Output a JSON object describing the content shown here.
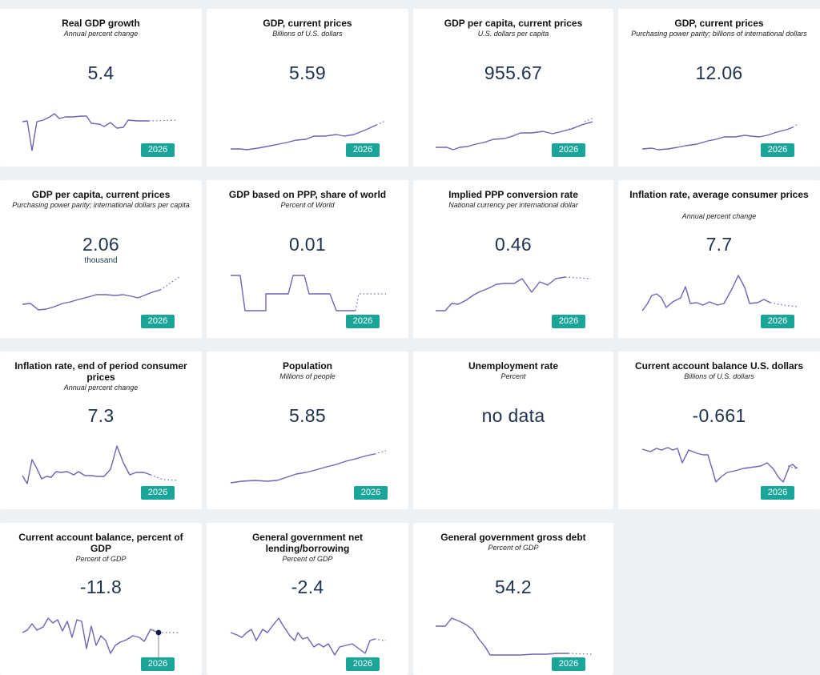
{
  "colors": {
    "accent": "#1aa59a",
    "line": "#6f63b5",
    "value": "#1f3350"
  },
  "projection_year": "2026",
  "cards": [
    {
      "title": "Real GDP growth",
      "subtitle": "Annual percent change",
      "value": "5.4",
      "unit": ""
    },
    {
      "title": "GDP, current prices",
      "subtitle": "Billions of U.S. dollars",
      "value": "5.59",
      "unit": ""
    },
    {
      "title": "GDP per capita, current prices",
      "subtitle": "U.S. dollars per capita",
      "value": "955.67",
      "unit": ""
    },
    {
      "title": "GDP, current prices",
      "subtitle": "Purchasing power parity; billions of international dollars",
      "value": "12.06",
      "unit": ""
    },
    {
      "title": "GDP per capita, current prices",
      "subtitle": "Purchasing power parity; international dollars per capita",
      "value": "2.06",
      "unit": "thousand"
    },
    {
      "title": "GDP based on PPP, share of world",
      "subtitle": "Percent of World",
      "value": "0.01",
      "unit": ""
    },
    {
      "title": "Implied PPP conversion rate",
      "subtitle": "National currency per international dollar",
      "value": "0.46",
      "unit": ""
    },
    {
      "title": "Inflation rate, average consumer prices",
      "subtitle": "Annual percent change",
      "value": "7.7",
      "unit": ""
    },
    {
      "title": "Inflation rate, end of period consumer prices",
      "subtitle": "Annual percent change",
      "value": "7.3",
      "unit": ""
    },
    {
      "title": "Population",
      "subtitle": "Millions of people",
      "value": "5.85",
      "unit": ""
    },
    {
      "title": "Unemployment rate",
      "subtitle": "Percent",
      "value": "no data",
      "unit": ""
    },
    {
      "title": "Current account balance U.S. dollars",
      "subtitle": "Billions of U.S. dollars",
      "value": "-0.661",
      "unit": ""
    },
    {
      "title": "Current account balance, percent of GDP",
      "subtitle": "Percent of GDP",
      "value": "-11.8",
      "unit": ""
    },
    {
      "title": "General government net lending/borrowing",
      "subtitle": "Percent of GDP",
      "value": "-2.4",
      "unit": ""
    },
    {
      "title": "General government gross debt",
      "subtitle": "Percent of GDP",
      "value": "54.2",
      "unit": ""
    }
  ]
}
